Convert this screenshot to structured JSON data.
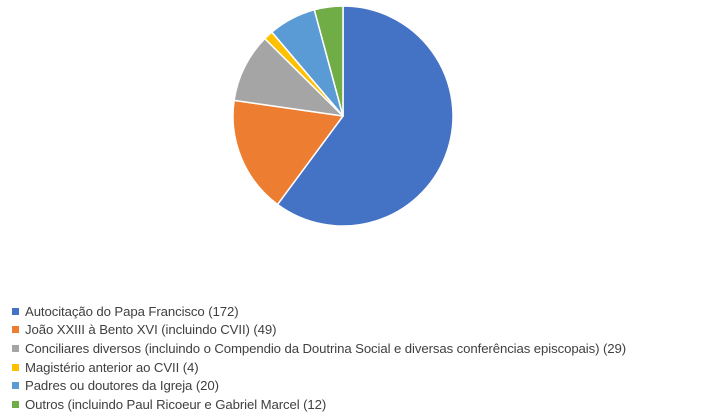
{
  "chart_data": {
    "type": "pie",
    "title": "",
    "legend_position": "bottom-left",
    "start_angle_deg": 0,
    "direction": "clockwise",
    "series": [
      {
        "label": " Autocitação do Papa Francisco (172)",
        "value": 172,
        "color": "#4472C4"
      },
      {
        "label": "João XXIII à Bento XVI (incluindo CVII) (49)",
        "value": 49,
        "color": "#ED7D31"
      },
      {
        "label": "Conciliares diversos (incluindo o Compendio da Doutrina Social e diversas conferências episcopais) (29)",
        "value": 29,
        "color": "#A5A5A5"
      },
      {
        "label": "Magistério anterior ao CVII (4)",
        "value": 4,
        "color": "#FFC000"
      },
      {
        "label": "Padres ou doutores da Igreja (20)",
        "value": 20,
        "color": "#5B9BD5"
      },
      {
        "label": "Outros (incluindo Paul Ricoeur e Gabriel Marcel (12)",
        "value": 12,
        "color": "#70AD47"
      }
    ]
  }
}
